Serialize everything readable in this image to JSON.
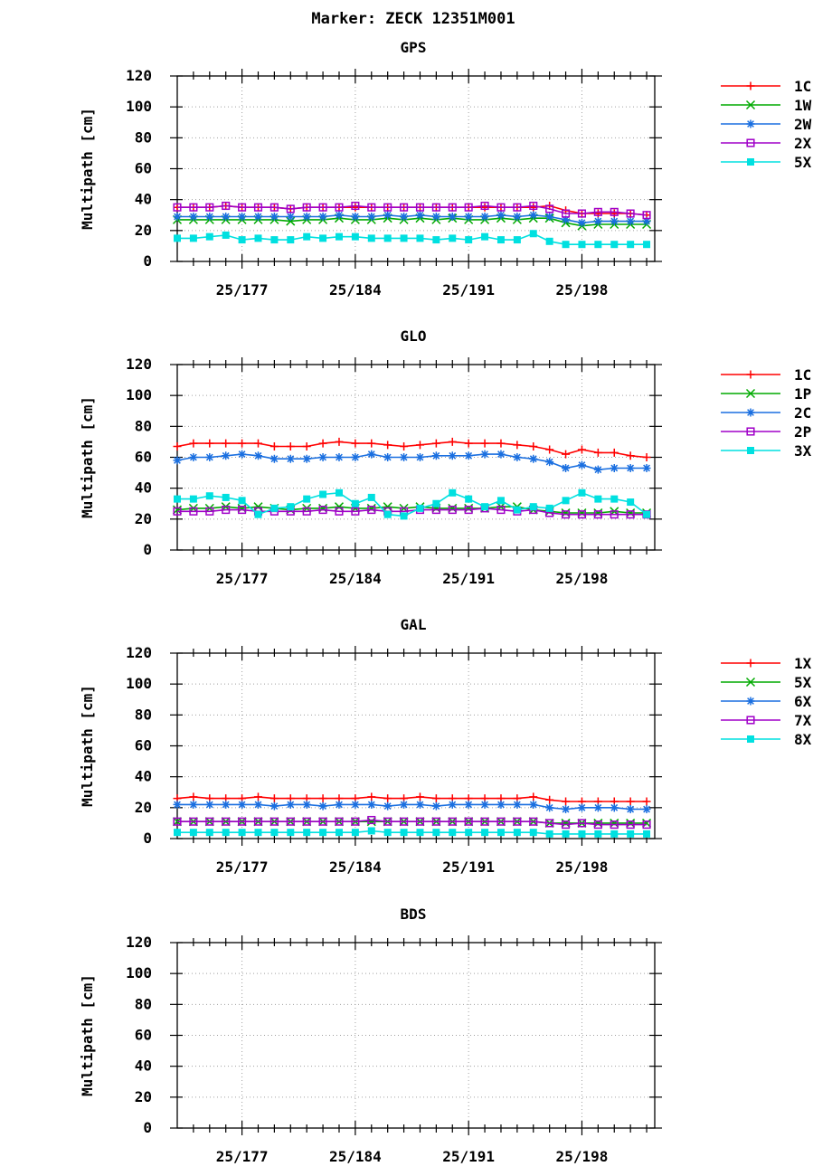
{
  "title": "Marker: ZECK 12351M001",
  "x_tick_labels": [
    "25/177",
    "25/184",
    "25/191",
    "25/198"
  ],
  "chart_data": [
    {
      "type": "line",
      "title": "GPS",
      "ylabel": "Multipath [cm]",
      "ylim": [
        0,
        120
      ],
      "yticks": [
        0,
        20,
        40,
        60,
        80,
        100,
        120
      ],
      "xlim": [
        "25/173",
        "25/202.5"
      ],
      "x_tick_days": [
        177,
        184,
        191,
        198
      ],
      "x_tick_labels": [
        "25/177",
        "25/184",
        "25/191",
        "25/198"
      ],
      "grid": true,
      "legend_position": "right",
      "x": [
        173,
        174,
        175,
        176,
        177,
        178,
        179,
        180,
        181,
        182,
        183,
        184,
        185,
        186,
        187,
        188,
        189,
        190,
        191,
        192,
        193,
        194,
        195,
        196,
        197,
        198,
        199,
        200,
        201,
        202
      ],
      "series": [
        {
          "name": "1C",
          "color": "#ff0000",
          "marker": "plus",
          "values": [
            35,
            35,
            35,
            36,
            35,
            35,
            35,
            34,
            35,
            35,
            35,
            35,
            35,
            35,
            35,
            35,
            35,
            35,
            35,
            35,
            35,
            35,
            35,
            36,
            33,
            31,
            31,
            31,
            31,
            30
          ]
        },
        {
          "name": "1W",
          "color": "#00aa00",
          "marker": "x",
          "values": [
            27,
            27,
            27,
            27,
            27,
            27,
            27,
            26,
            27,
            27,
            28,
            27,
            27,
            28,
            27,
            28,
            27,
            28,
            27,
            27,
            28,
            27,
            28,
            28,
            25,
            23,
            24,
            24,
            24,
            24
          ]
        },
        {
          "name": "2W",
          "color": "#1a6fe0",
          "marker": "star",
          "values": [
            29,
            29,
            29,
            29,
            29,
            29,
            29,
            29,
            29,
            29,
            30,
            29,
            29,
            30,
            29,
            30,
            29,
            29,
            29,
            29,
            30,
            29,
            30,
            29,
            27,
            25,
            26,
            26,
            26,
            26
          ]
        },
        {
          "name": "2X",
          "color": "#a000c8",
          "marker": "square-open",
          "values": [
            35,
            35,
            35,
            36,
            35,
            35,
            35,
            34,
            35,
            35,
            35,
            36,
            35,
            35,
            35,
            35,
            35,
            35,
            35,
            36,
            35,
            35,
            36,
            34,
            31,
            31,
            32,
            32,
            31,
            30
          ]
        },
        {
          "name": "5X",
          "color": "#00e0e0",
          "marker": "square-filled",
          "values": [
            15,
            15,
            16,
            17,
            14,
            15,
            14,
            14,
            16,
            15,
            16,
            16,
            15,
            15,
            15,
            15,
            14,
            15,
            14,
            16,
            14,
            14,
            18,
            13,
            11,
            11,
            11,
            11,
            11,
            11
          ]
        }
      ]
    },
    {
      "type": "line",
      "title": "GLO",
      "ylabel": "Multipath [cm]",
      "ylim": [
        0,
        120
      ],
      "yticks": [
        0,
        20,
        40,
        60,
        80,
        100,
        120
      ],
      "xlim": [
        "25/173",
        "25/202.5"
      ],
      "x_tick_days": [
        177,
        184,
        191,
        198
      ],
      "x_tick_labels": [
        "25/177",
        "25/184",
        "25/191",
        "25/198"
      ],
      "grid": true,
      "legend_position": "right",
      "x": [
        173,
        174,
        175,
        176,
        177,
        178,
        179,
        180,
        181,
        182,
        183,
        184,
        185,
        186,
        187,
        188,
        189,
        190,
        191,
        192,
        193,
        194,
        195,
        196,
        197,
        198,
        199,
        200,
        201,
        202
      ],
      "series": [
        {
          "name": "1C",
          "color": "#ff0000",
          "marker": "plus",
          "values": [
            67,
            69,
            69,
            69,
            69,
            69,
            67,
            67,
            67,
            69,
            70,
            69,
            69,
            68,
            67,
            68,
            69,
            70,
            69,
            69,
            69,
            68,
            67,
            65,
            62,
            65,
            63,
            63,
            61,
            60
          ]
        },
        {
          "name": "1P",
          "color": "#00aa00",
          "marker": "x",
          "values": [
            26,
            27,
            27,
            28,
            27,
            28,
            27,
            26,
            27,
            27,
            28,
            27,
            27,
            28,
            27,
            28,
            27,
            27,
            27,
            27,
            28,
            28,
            26,
            25,
            24,
            24,
            24,
            25,
            24,
            24
          ]
        },
        {
          "name": "2C",
          "color": "#1a6fe0",
          "marker": "star",
          "values": [
            58,
            60,
            60,
            61,
            62,
            61,
            59,
            59,
            59,
            60,
            60,
            60,
            62,
            60,
            60,
            60,
            61,
            61,
            61,
            62,
            62,
            60,
            59,
            57,
            53,
            55,
            52,
            53,
            53,
            53
          ]
        },
        {
          "name": "2P",
          "color": "#a000c8",
          "marker": "square-open",
          "values": [
            25,
            25,
            25,
            26,
            26,
            25,
            25,
            25,
            25,
            26,
            25,
            25,
            26,
            25,
            25,
            26,
            26,
            26,
            26,
            27,
            26,
            25,
            26,
            24,
            23,
            23,
            23,
            23,
            23,
            23
          ]
        },
        {
          "name": "3X",
          "color": "#00e0e0",
          "marker": "square-filled",
          "values": [
            33,
            33,
            35,
            34,
            32,
            23,
            27,
            28,
            33,
            36,
            37,
            30,
            34,
            23,
            22,
            27,
            30,
            37,
            33,
            28,
            32,
            26,
            28,
            27,
            32,
            37,
            33,
            33,
            31,
            23
          ]
        }
      ]
    },
    {
      "type": "line",
      "title": "GAL",
      "ylabel": "Multipath [cm]",
      "ylim": [
        0,
        120
      ],
      "yticks": [
        0,
        20,
        40,
        60,
        80,
        100,
        120
      ],
      "xlim": [
        "25/173",
        "25/202.5"
      ],
      "x_tick_days": [
        177,
        184,
        191,
        198
      ],
      "x_tick_labels": [
        "25/177",
        "25/184",
        "25/191",
        "25/198"
      ],
      "grid": true,
      "legend_position": "right",
      "x": [
        173,
        174,
        175,
        176,
        177,
        178,
        179,
        180,
        181,
        182,
        183,
        184,
        185,
        186,
        187,
        188,
        189,
        190,
        191,
        192,
        193,
        194,
        195,
        196,
        197,
        198,
        199,
        200,
        201,
        202
      ],
      "series": [
        {
          "name": "1X",
          "color": "#ff0000",
          "marker": "plus",
          "values": [
            26,
            27,
            26,
            26,
            26,
            27,
            26,
            26,
            26,
            26,
            26,
            26,
            27,
            26,
            26,
            27,
            26,
            26,
            26,
            26,
            26,
            26,
            27,
            25,
            24,
            24,
            24,
            24,
            24,
            24
          ]
        },
        {
          "name": "5X",
          "color": "#00aa00",
          "marker": "x",
          "values": [
            11,
            11,
            11,
            11,
            11,
            11,
            11,
            11,
            11,
            11,
            11,
            11,
            11,
            11,
            11,
            11,
            11,
            11,
            11,
            11,
            11,
            11,
            11,
            10,
            10,
            10,
            10,
            10,
            10,
            10
          ]
        },
        {
          "name": "6X",
          "color": "#1a6fe0",
          "marker": "star",
          "values": [
            22,
            22,
            22,
            22,
            22,
            22,
            21,
            22,
            22,
            21,
            22,
            22,
            22,
            21,
            22,
            22,
            21,
            22,
            22,
            22,
            22,
            22,
            22,
            20,
            19,
            20,
            20,
            20,
            19,
            19
          ]
        },
        {
          "name": "7X",
          "color": "#a000c8",
          "marker": "square-open",
          "values": [
            11,
            11,
            11,
            11,
            11,
            11,
            11,
            11,
            11,
            11,
            11,
            11,
            12,
            11,
            11,
            11,
            11,
            11,
            11,
            11,
            11,
            11,
            11,
            10,
            9,
            10,
            9,
            9,
            9,
            9
          ]
        },
        {
          "name": "8X",
          "color": "#00e0e0",
          "marker": "square-filled",
          "values": [
            4,
            4,
            4,
            4,
            4,
            4,
            4,
            4,
            4,
            4,
            4,
            4,
            5,
            4,
            4,
            4,
            4,
            4,
            4,
            4,
            4,
            4,
            4,
            3,
            3,
            3,
            3,
            3,
            3,
            3
          ]
        }
      ]
    },
    {
      "type": "line",
      "title": "BDS",
      "ylabel": "Multipath [cm]",
      "ylim": [
        0,
        120
      ],
      "yticks": [
        0,
        20,
        40,
        60,
        80,
        100,
        120
      ],
      "xlim": [
        "25/173",
        "25/202.5"
      ],
      "x_tick_days": [
        177,
        184,
        191,
        198
      ],
      "x_tick_labels": [
        "25/177",
        "25/184",
        "25/191",
        "25/198"
      ],
      "grid": true,
      "legend_position": "right",
      "x": [],
      "series": []
    }
  ]
}
